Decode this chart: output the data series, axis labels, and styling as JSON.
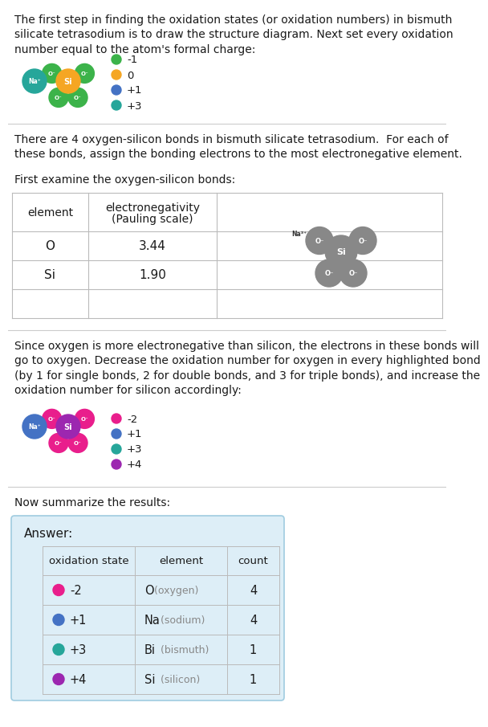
{
  "para1": "The first step in finding the oxidation states (or oxidation numbers) in bismuth silicate tetrasodium is to draw the structure diagram. Next set every oxidation number equal to the atom's formal charge:",
  "para2": "There are 4 oxygen-silicon bonds in bismuth silicate tetrasodium.  For each of these bonds, assign the bonding electrons to the most electronegative element.",
  "para3": "First examine the oxygen-silicon bonds:",
  "para4": "Since oxygen is more electronegative than silicon, the electrons in these bonds will go to oxygen. Decrease the oxidation number for oxygen in every highlighted bond (by 1 for single bonds, 2 for double bonds, and 3 for triple bonds), and increase the oxidation number for silicon accordingly:",
  "para5": "Now summarize the results:",
  "legend1": [
    {
      "color": "#3cb34a",
      "label": "-1"
    },
    {
      "color": "#f5a623",
      "label": "0"
    },
    {
      "color": "#4472c4",
      "label": "+1"
    },
    {
      "color": "#26a69a",
      "label": "+3"
    }
  ],
  "legend2": [
    {
      "color": "#e91e8c",
      "label": "-2"
    },
    {
      "color": "#4472c4",
      "label": "+1"
    },
    {
      "color": "#26a69a",
      "label": "+3"
    },
    {
      "color": "#9c27b0",
      "label": "+4"
    }
  ],
  "table_rows": [
    [
      "O",
      "3.44"
    ],
    [
      "Si",
      "1.90"
    ],
    [
      "",
      ""
    ]
  ],
  "answer_rows": [
    {
      "dot_color": "#e91e8c",
      "ox": "-2",
      "element": "O",
      "element_sub": "(oxygen)",
      "count": "4"
    },
    {
      "dot_color": "#4472c4",
      "ox": "+1",
      "element": "Na",
      "element_sub": "(sodium)",
      "count": "4"
    },
    {
      "dot_color": "#26a69a",
      "ox": "+3",
      "element": "Bi",
      "element_sub": "(bismuth)",
      "count": "1"
    },
    {
      "dot_color": "#9c27b0",
      "ox": "+4",
      "element": "Si",
      "element_sub": "(silicon)",
      "count": "1"
    }
  ],
  "answer_header": [
    "oxidation state",
    "element",
    "count"
  ],
  "bg_color": "#ffffff",
  "text_color": "#1a1a1a",
  "answer_bg": "#ddeef7",
  "answer_border": "#a0cce0",
  "line_color": "#cccccc",
  "table_line_color": "#bbbbbb"
}
